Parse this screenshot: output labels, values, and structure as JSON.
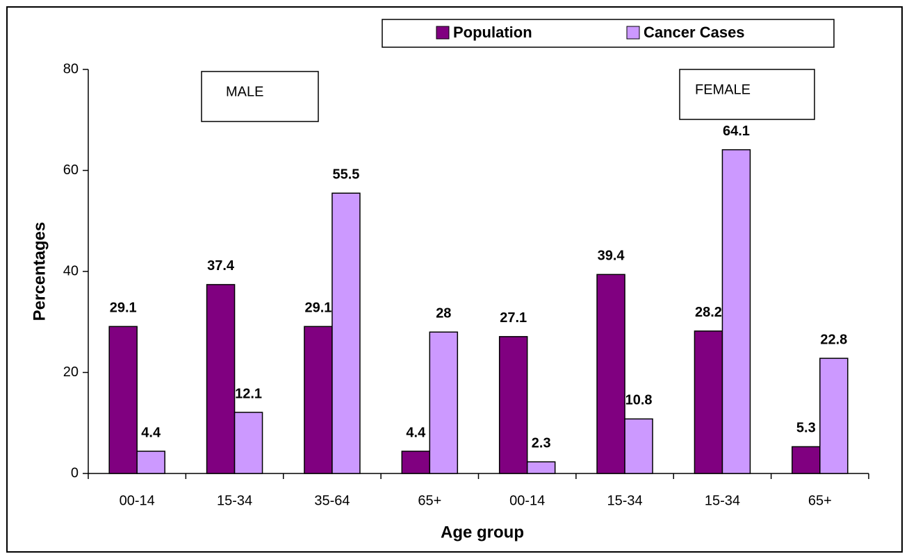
{
  "chart_data": {
    "type": "bar",
    "xlabel": "Age group",
    "ylabel": "Percentages",
    "categories": [
      "00-14",
      "15-34",
      "35-64",
      "65+",
      "00-14",
      "15-34",
      "15-34",
      "65+"
    ],
    "series": [
      {
        "name": "Population",
        "color": "#800080",
        "values": [
          29.1,
          37.4,
          29.1,
          4.4,
          27.1,
          39.4,
          28.2,
          5.3
        ]
      },
      {
        "name": "Cancer Cases",
        "color": "#cc99ff",
        "values": [
          4.4,
          12.1,
          55.5,
          28,
          2.3,
          10.8,
          64.1,
          22.8
        ]
      }
    ],
    "annotations": [
      "MALE",
      "FEMALE"
    ],
    "ylim": [
      0,
      80
    ],
    "yticks": [
      0,
      20,
      40,
      60,
      80
    ],
    "legend": "top",
    "grid": false
  }
}
